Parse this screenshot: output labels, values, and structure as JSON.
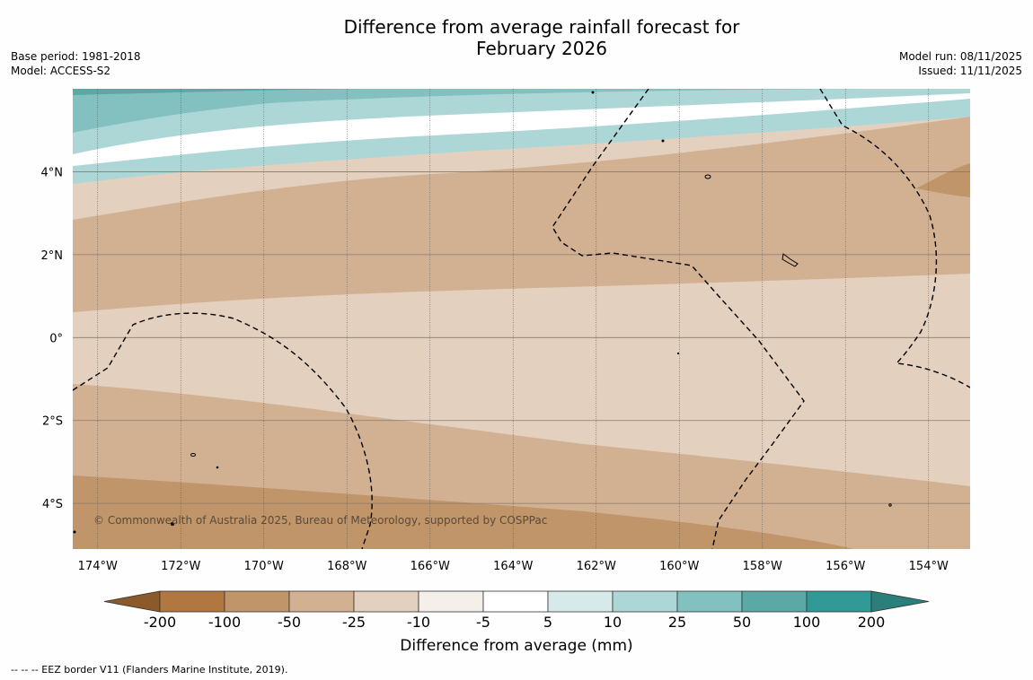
{
  "header": {
    "title_line1": "Difference from average rainfall forecast for",
    "title_line2": "February 2026",
    "base_period": "Base period: 1981-2018",
    "model": "Model: ACCESS-S2",
    "model_run": "Model run: 08/11/2025",
    "issued": "Issued: 11/11/2025"
  },
  "map": {
    "lat_labels": [
      "4°N",
      "2°N",
      "0°",
      "2°S",
      "4°S"
    ],
    "lon_labels": [
      "174°W",
      "172°W",
      "170°W",
      "168°W",
      "166°W",
      "164°W",
      "162°W",
      "160°W",
      "158°W",
      "156°W",
      "154°W"
    ],
    "lat_range": [
      -5.1,
      6.0
    ],
    "lon_range": [
      -174.6,
      -153.0
    ],
    "copyright": "© Commonwealth of Australia 2025, Bureau of Meteorology, supported by COSPPac"
  },
  "colorbar": {
    "ticks": [
      "-200",
      "-100",
      "-50",
      "-25",
      "-10",
      "-5",
      "5",
      "10",
      "25",
      "50",
      "100",
      "200"
    ],
    "under_color": "#8c5a2a",
    "over_color": "#2a7f7a",
    "colors": [
      "#b07840",
      "#c0956a",
      "#d2b193",
      "#e3d0be",
      "#f4efe9",
      "#ffffff",
      "#d6ebe9",
      "#add7d6",
      "#82c1bf",
      "#5aa9a6",
      "#329a96"
    ],
    "label": "Difference from average (mm)"
  },
  "footer": {
    "legend_text": "--  --  -- EEZ border V11 (Flanders Marine Institute, 2019)."
  }
}
